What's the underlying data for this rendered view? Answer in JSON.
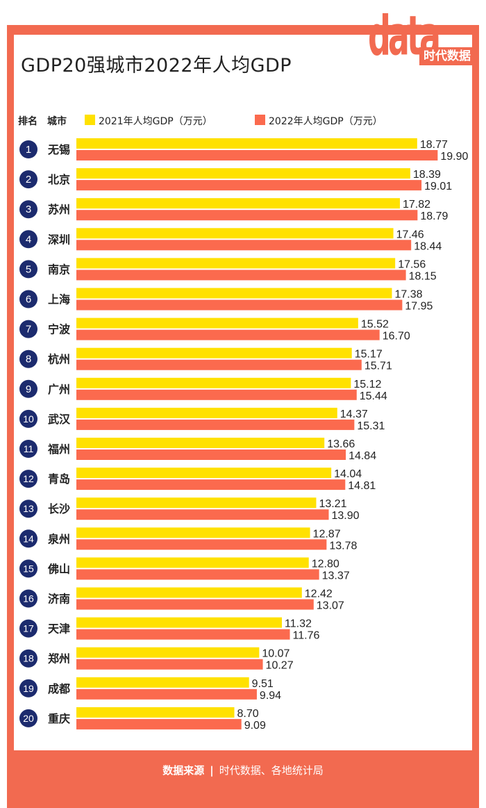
{
  "title": "GDP20强城市2022年人均GDP",
  "logo": {
    "main": "data",
    "tag": "时代数据"
  },
  "header": {
    "rank_label": "排名",
    "city_label": "城市"
  },
  "colors": {
    "accent": "#f26a50",
    "series2021": "#ffe100",
    "series2022": "#fb6a4e",
    "badge": "#1c2b6e"
  },
  "footer": {
    "label": "数据来源",
    "separator": "|",
    "source": "时代数据、各地统计局"
  },
  "chart_data": {
    "type": "bar",
    "orientation": "horizontal",
    "title": "GDP20强城市2022年人均GDP",
    "unit": "万元",
    "series": [
      {
        "name": "2021年人均GDP（万元）",
        "values": [
          18.77,
          18.39,
          17.82,
          17.46,
          17.56,
          17.38,
          15.52,
          15.17,
          15.12,
          14.37,
          13.66,
          14.04,
          13.21,
          12.87,
          12.8,
          12.42,
          11.32,
          10.07,
          9.51,
          8.7
        ]
      },
      {
        "name": "2022年人均GDP（万元）",
        "values": [
          19.9,
          19.01,
          18.79,
          18.44,
          18.15,
          17.95,
          16.7,
          15.71,
          15.44,
          15.31,
          14.84,
          14.81,
          13.9,
          13.78,
          13.37,
          13.07,
          11.76,
          10.27,
          9.94,
          9.09
        ]
      }
    ],
    "ranks": [
      "1",
      "2",
      "3",
      "4",
      "5",
      "6",
      "7",
      "8",
      "9",
      "10",
      "11",
      "12",
      "13",
      "14",
      "15",
      "16",
      "17",
      "18",
      "19",
      "20"
    ],
    "categories": [
      "无锡",
      "北京",
      "苏州",
      "深圳",
      "南京",
      "上海",
      "宁波",
      "杭州",
      "广州",
      "武汉",
      "福州",
      "青岛",
      "长沙",
      "泉州",
      "佛山",
      "济南",
      "天津",
      "郑州",
      "成都",
      "重庆"
    ],
    "xlim": [
      0,
      20
    ],
    "legend_position": "top"
  }
}
